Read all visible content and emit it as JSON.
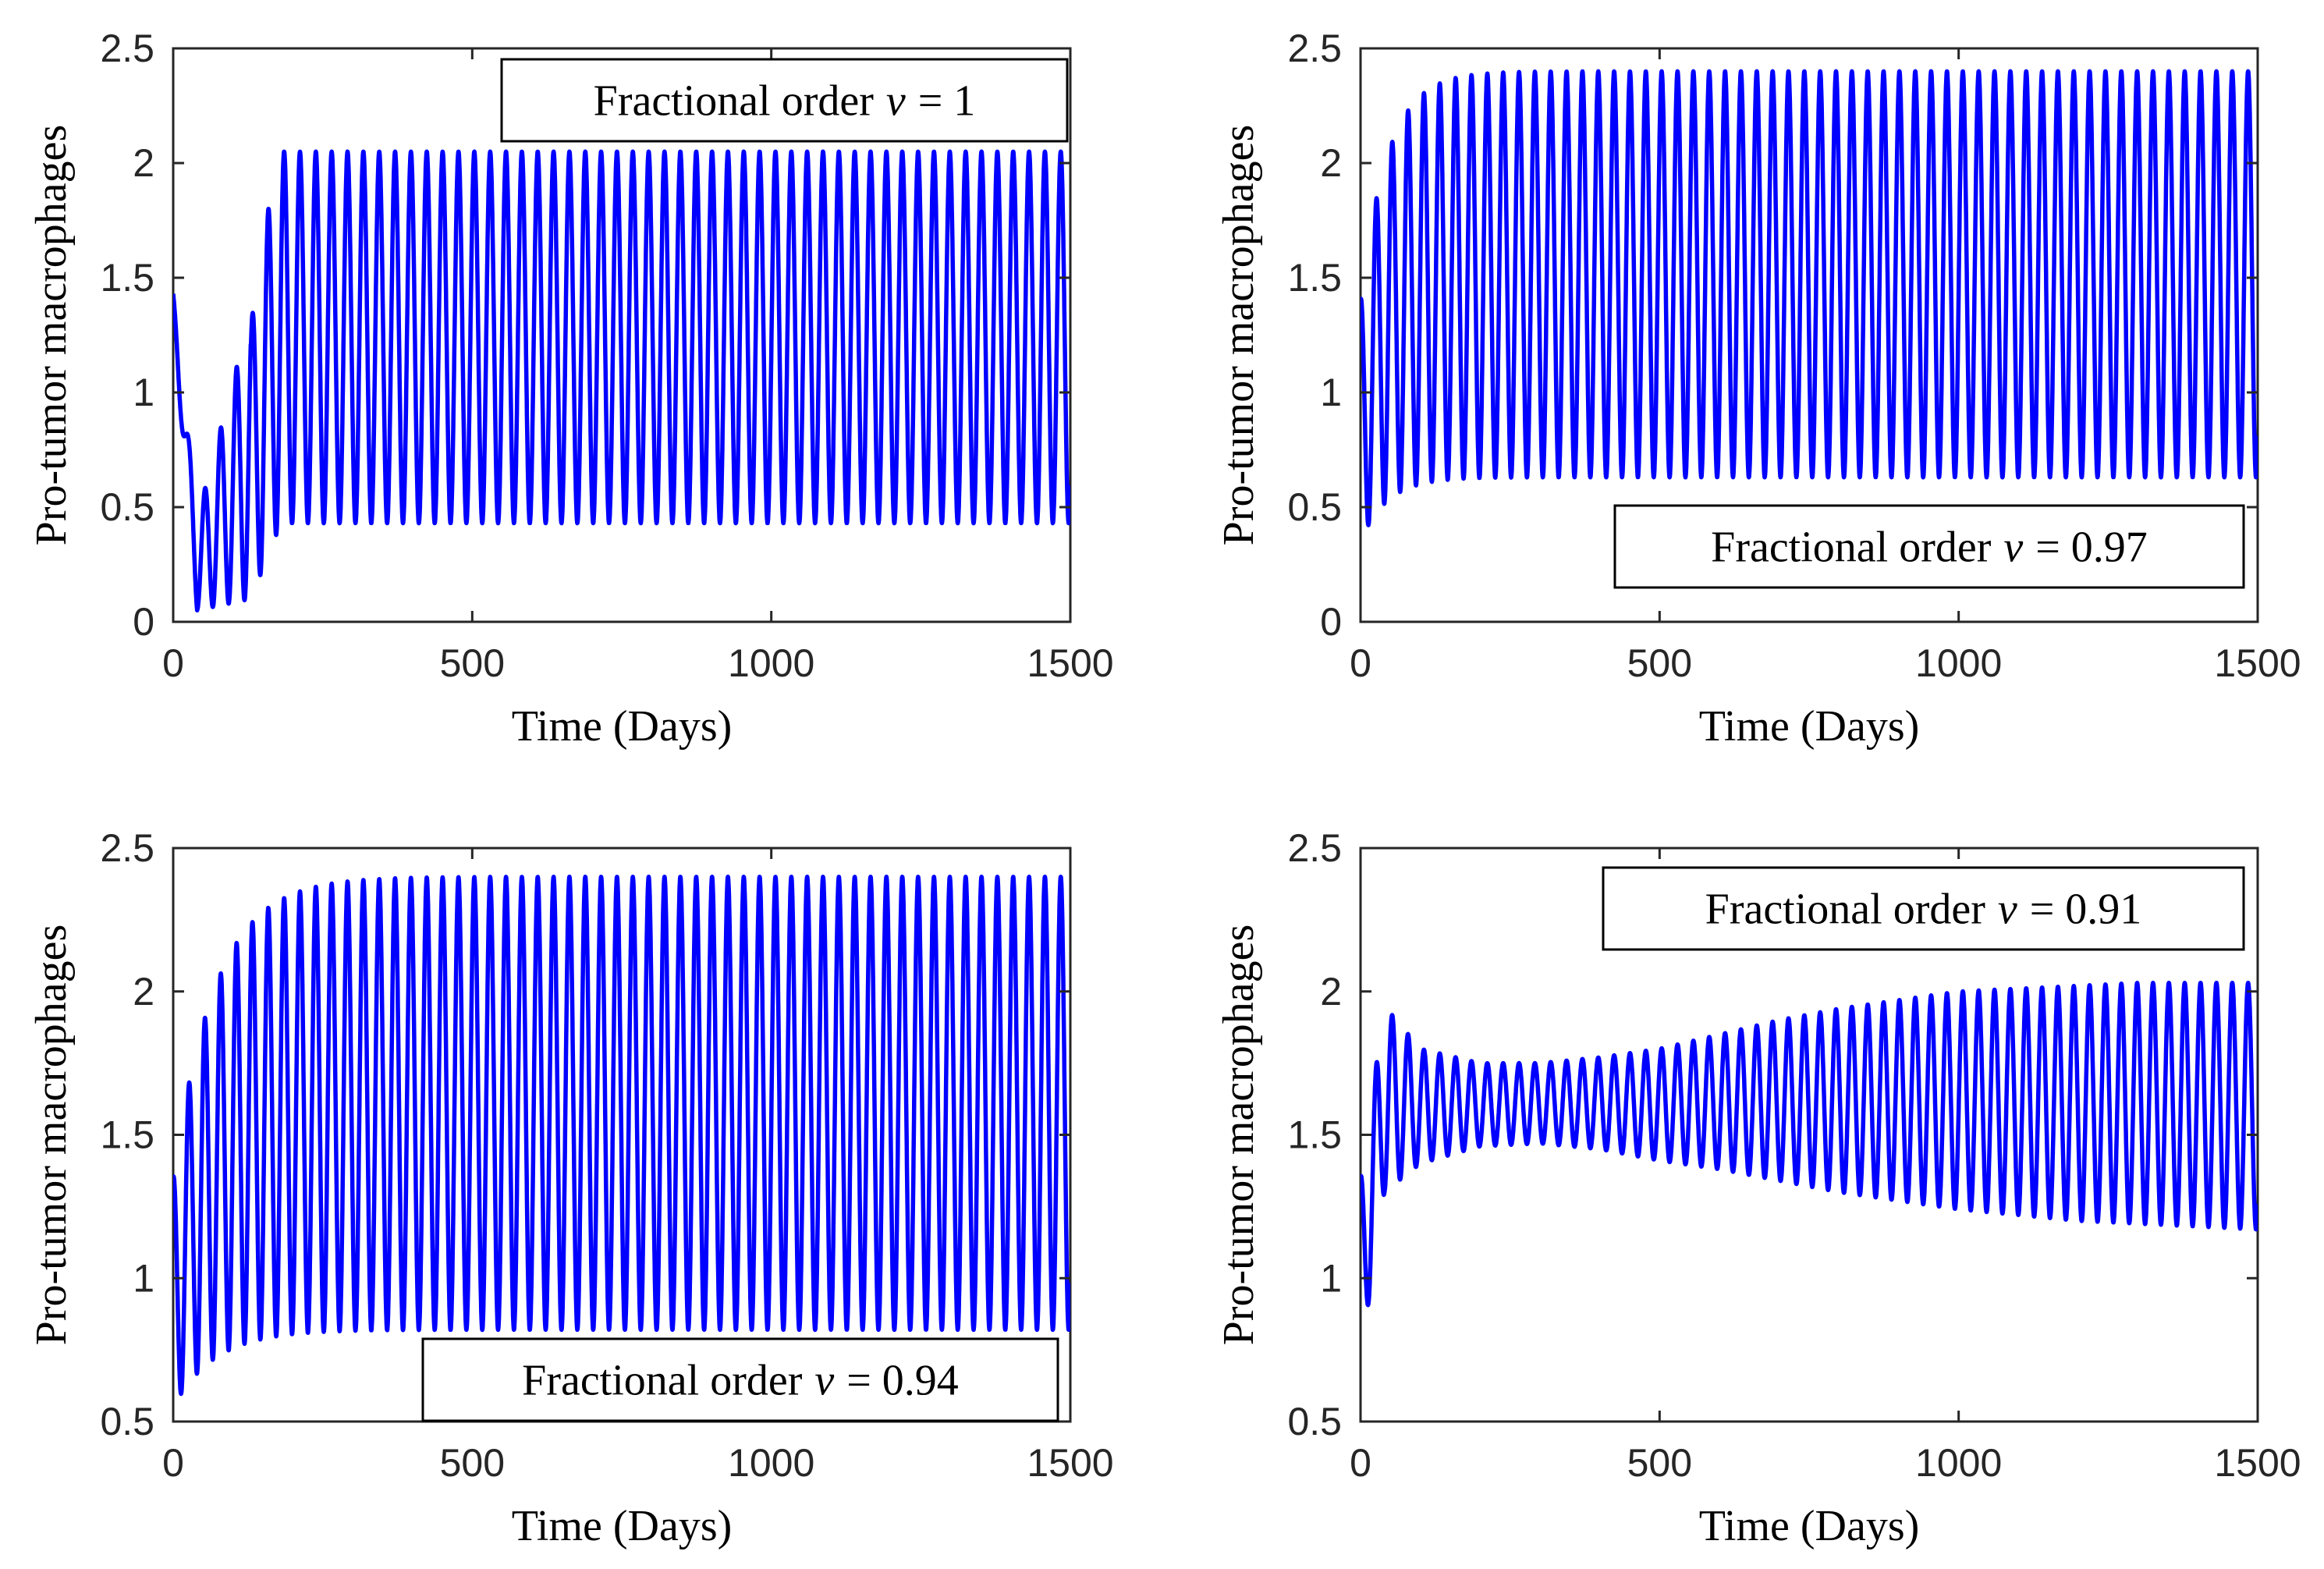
{
  "chart_data": [
    {
      "type": "line",
      "xlabel": "Time (Days)",
      "ylabel": "Pro-tumor macrophages",
      "xlim": [
        0,
        1500
      ],
      "ylim": [
        0,
        2.5
      ],
      "xticks": [
        "0",
        "500",
        "1000",
        "1500"
      ],
      "yticks": [
        "0",
        "0.5",
        "1",
        "1.5",
        "2",
        "2.5"
      ],
      "grid": false,
      "legend": {
        "text": "Fractional order",
        "var": "v",
        "value": "= 1",
        "placement": "top-right"
      },
      "color": "#0000ff",
      "model": {
        "y0": 1.3,
        "period": 26.5,
        "startMax": 1.38,
        "startMin": 0.05,
        "tau": 100,
        "finalMax": 2.05,
        "finalMin": 0.43,
        "jump": [
          130,
          200
        ],
        "points": [
          [
            0,
            1.3
          ],
          [
            40,
            0.05
          ],
          [
            70,
            0.12
          ],
          [
            100,
            0.62
          ],
          [
            130,
            1.3
          ],
          [
            160,
            2.08
          ],
          [
            200,
            2.05
          ],
          [
            1500,
            2.02
          ]
        ]
      }
    },
    {
      "type": "line",
      "xlabel": "Time (Days)",
      "ylabel": "Pro-tumor macrophages",
      "xlim": [
        0,
        1500
      ],
      "ylim": [
        0,
        2.5
      ],
      "xticks": [
        "0",
        "500",
        "1000",
        "1500"
      ],
      "yticks": [
        "0",
        "0.5",
        "1",
        "1.5",
        "2",
        "2.5"
      ],
      "grid": false,
      "legend": {
        "text": "Fractional order",
        "var": "v",
        "value": "= 0.97",
        "placement": "bottom-right"
      },
      "color": "#0000ff",
      "model": {
        "y0": 1.3,
        "period": 26.5,
        "startMax": 1.4,
        "startMin": 0.35,
        "tau": 45,
        "finalMax": 2.4,
        "finalMin": 0.63,
        "points": [
          [
            0,
            1.3
          ],
          [
            20,
            0.36
          ],
          [
            50,
            1.8
          ],
          [
            85,
            2.45
          ],
          [
            1500,
            1.15
          ]
        ]
      }
    },
    {
      "type": "line",
      "xlabel": "Time (Days)",
      "ylabel": "Pro-tumor macrophages",
      "xlim": [
        0,
        1500
      ],
      "ylim": [
        0.5,
        2.5
      ],
      "xticks": [
        "0",
        "500",
        "1000",
        "1500"
      ],
      "yticks": [
        "0.5",
        "1",
        "1.5",
        "2",
        "2.5"
      ],
      "grid": false,
      "legend": {
        "text": "Fractional order",
        "var": "v",
        "value": "= 0.94",
        "placement": "bottom-right"
      },
      "color": "#0000ff",
      "model": {
        "y0": 1.35,
        "period": 26.5,
        "startMax": 1.35,
        "startMin": 0.55,
        "tau": 70,
        "finalMax": 2.4,
        "finalMin": 0.82,
        "points": [
          [
            0,
            1.35
          ],
          [
            20,
            0.55
          ],
          [
            40,
            2.05
          ],
          [
            1500,
            1.62
          ]
        ]
      }
    },
    {
      "type": "line",
      "xlabel": "Time (Days)",
      "ylabel": "Pro-tumor macrophages",
      "xlim": [
        0,
        1500
      ],
      "ylim": [
        0.5,
        2.5
      ],
      "xticks": [
        "0",
        "500",
        "1000",
        "1500"
      ],
      "yticks": [
        "0.5",
        "1",
        "1.5",
        "2",
        "2.5"
      ],
      "grid": false,
      "legend": {
        "text": "Fractional order",
        "var": "v",
        "value": "= 0.91",
        "placement": "top-right"
      },
      "color": "#0000ff",
      "model": {
        "y0": 1.35,
        "period": 26.5,
        "envelope": [
          [
            0,
            1.35,
            0.72
          ],
          [
            40,
            1.95,
            1.3
          ],
          [
            100,
            1.8,
            1.4
          ],
          [
            200,
            1.75,
            1.46
          ],
          [
            300,
            1.75,
            1.47
          ],
          [
            400,
            1.77,
            1.45
          ],
          [
            500,
            1.8,
            1.41
          ],
          [
            600,
            1.85,
            1.38
          ],
          [
            700,
            1.9,
            1.34
          ],
          [
            800,
            1.94,
            1.3
          ],
          [
            900,
            1.97,
            1.27
          ],
          [
            1000,
            2.0,
            1.24
          ],
          [
            1100,
            2.01,
            1.22
          ],
          [
            1200,
            2.02,
            1.2
          ],
          [
            1300,
            2.03,
            1.19
          ],
          [
            1400,
            2.03,
            1.18
          ],
          [
            1500,
            2.03,
            1.17
          ]
        ],
        "points": [
          [
            0,
            1.35
          ],
          [
            17,
            0.72
          ],
          [
            38,
            1.95
          ],
          [
            1500,
            2.0
          ]
        ]
      }
    }
  ]
}
